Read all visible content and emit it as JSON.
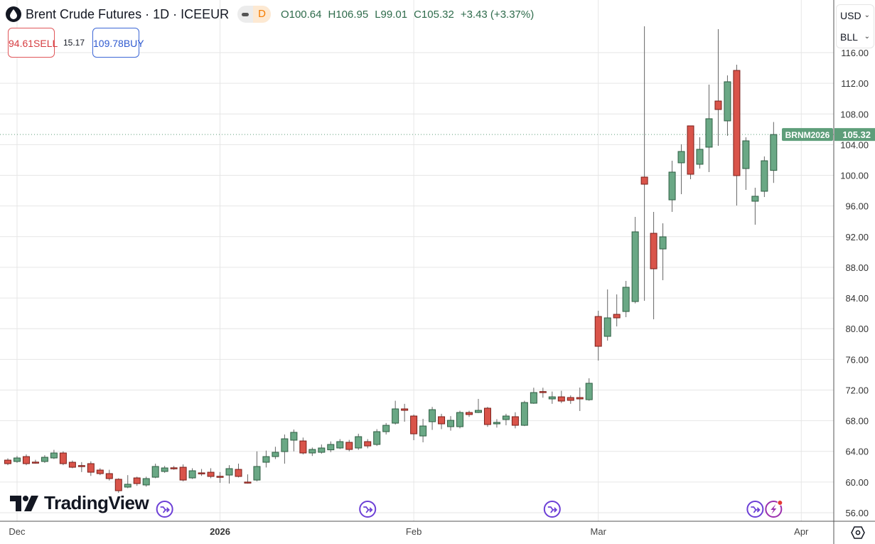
{
  "header": {
    "title": "Brent Crude Futures · 1D · ICEEUR",
    "interval_badge": "D",
    "ohlc": {
      "open": "O100.64",
      "high": "H106.95",
      "low": "L99.01",
      "close": "C105.32",
      "change": "+3.43 (+3.37%)"
    }
  },
  "trade": {
    "sell_price": "94.61",
    "sell_label": "SELL",
    "spread": "15.17",
    "buy_price": "109.78",
    "buy_label": "BUY"
  },
  "unit_selector": {
    "currency": "USD",
    "unit": "BLL"
  },
  "last_price": {
    "symbol": "BRNM2026",
    "value": "105.32"
  },
  "branding": {
    "name": "TradingView"
  },
  "colors": {
    "up": "#6aa885",
    "up_border": "#2f5e43",
    "down": "#d9544a",
    "down_border": "#7a1f1a",
    "event": "#6c3fd6",
    "last_price": "#5e9e7a"
  },
  "chart_data": {
    "type": "candlestick",
    "title": "Brent Crude Futures · 1D · ICEEUR",
    "ylim": [
      56,
      116
    ],
    "y_ticks": [
      "56.00",
      "60.00",
      "64.00",
      "68.00",
      "72.00",
      "76.00",
      "80.00",
      "84.00",
      "88.00",
      "92.00",
      "96.00",
      "100.00",
      "104.00",
      "108.00",
      "112.00",
      "116.00"
    ],
    "x_labels": [
      {
        "label": "Dec",
        "index": 1
      },
      {
        "label": "2026",
        "index": 23,
        "bold": true
      },
      {
        "label": "Feb",
        "index": 44
      },
      {
        "label": "Mar",
        "index": 64
      },
      {
        "label": "Apr",
        "index": 86
      }
    ],
    "events": [
      {
        "index": 17,
        "type": "split"
      },
      {
        "index": 39,
        "type": "split"
      },
      {
        "index": 59,
        "type": "split"
      },
      {
        "index": 81,
        "type": "split"
      },
      {
        "index": 83,
        "type": "flash"
      }
    ],
    "candles": [
      [
        62.86,
        63.1,
        62.2,
        62.4
      ],
      [
        62.68,
        63.4,
        62.5,
        63.14
      ],
      [
        63.32,
        63.6,
        62.2,
        62.4
      ],
      [
        62.6,
        62.9,
        62.4,
        62.58
      ],
      [
        62.68,
        63.5,
        62.5,
        63.23
      ],
      [
        63.14,
        64.2,
        63.0,
        63.79
      ],
      [
        63.79,
        64.0,
        62.2,
        62.4
      ],
      [
        62.58,
        62.8,
        61.8,
        61.93
      ],
      [
        62.15,
        62.6,
        61.3,
        62.12
      ],
      [
        62.4,
        62.7,
        60.8,
        61.28
      ],
      [
        61.56,
        61.8,
        60.9,
        61.1
      ],
      [
        61.1,
        61.6,
        60.2,
        60.45
      ],
      [
        60.36,
        60.5,
        58.6,
        58.87
      ],
      [
        59.34,
        60.9,
        59.2,
        59.71
      ],
      [
        60.54,
        60.7,
        59.5,
        59.8
      ],
      [
        59.62,
        60.7,
        59.4,
        60.45
      ],
      [
        60.63,
        62.4,
        60.5,
        62.03
      ],
      [
        61.38,
        62.1,
        61.2,
        61.84
      ],
      [
        61.86,
        62.1,
        61.6,
        61.84
      ],
      [
        61.93,
        62.3,
        60.1,
        60.26
      ],
      [
        60.54,
        61.8,
        60.4,
        61.47
      ],
      [
        61.2,
        61.7,
        60.8,
        61.19
      ],
      [
        61.28,
        61.8,
        60.5,
        60.73
      ],
      [
        60.75,
        61.3,
        59.9,
        60.73
      ],
      [
        60.91,
        62.2,
        59.8,
        61.75
      ],
      [
        61.65,
        62.4,
        60.6,
        60.73
      ],
      [
        60.0,
        61.0,
        59.8,
        59.99
      ],
      [
        60.26,
        64.0,
        60.1,
        62.03
      ],
      [
        62.58,
        64.1,
        61.9,
        63.32
      ],
      [
        63.32,
        64.6,
        63.0,
        63.88
      ],
      [
        63.97,
        66.2,
        62.4,
        65.64
      ],
      [
        65.46,
        66.85,
        64.0,
        66.48
      ],
      [
        65.36,
        65.8,
        63.6,
        63.79
      ],
      [
        63.79,
        64.5,
        63.4,
        64.25
      ],
      [
        63.88,
        64.9,
        63.7,
        64.44
      ],
      [
        64.2,
        65.3,
        63.9,
        64.9
      ],
      [
        64.44,
        65.6,
        64.3,
        65.27
      ],
      [
        65.18,
        65.5,
        64.0,
        64.25
      ],
      [
        64.44,
        66.3,
        64.2,
        65.92
      ],
      [
        65.27,
        65.6,
        64.4,
        64.71
      ],
      [
        64.9,
        66.9,
        64.7,
        66.57
      ],
      [
        66.57,
        67.7,
        66.2,
        67.4
      ],
      [
        67.68,
        70.6,
        67.5,
        69.54
      ],
      [
        69.54,
        70.2,
        67.87,
        69.35
      ],
      [
        68.61,
        68.8,
        65.46,
        66.29
      ],
      [
        66.01,
        68.24,
        65.18,
        67.31
      ],
      [
        67.87,
        69.8,
        66.8,
        69.44
      ],
      [
        68.52,
        68.9,
        66.9,
        67.59
      ],
      [
        67.22,
        68.6,
        66.7,
        68.05
      ],
      [
        67.22,
        69.3,
        67.0,
        69.07
      ],
      [
        69.07,
        69.3,
        68.5,
        68.8
      ],
      [
        69.07,
        70.84,
        69.0,
        69.35
      ],
      [
        69.63,
        69.8,
        67.2,
        67.5
      ],
      [
        67.59,
        68.2,
        67.1,
        67.78
      ],
      [
        68.15,
        68.9,
        67.4,
        68.61
      ],
      [
        68.52,
        69.1,
        67.0,
        67.4
      ],
      [
        67.4,
        70.6,
        67.3,
        70.37
      ],
      [
        70.28,
        72.3,
        70.2,
        71.67
      ],
      [
        71.8,
        72.3,
        71.0,
        71.76
      ],
      [
        70.84,
        71.8,
        70.2,
        71.11
      ],
      [
        71.11,
        71.9,
        70.3,
        70.56
      ],
      [
        71.02,
        71.3,
        70.2,
        70.65
      ],
      [
        71.02,
        72.32,
        69.26,
        70.84
      ],
      [
        70.74,
        73.53,
        70.6,
        72.88
      ],
      [
        81.59,
        82.34,
        75.84,
        77.7
      ],
      [
        79.0,
        85.12,
        78.44,
        81.41
      ],
      [
        81.87,
        84.47,
        80.3,
        81.41
      ],
      [
        82.24,
        86.23,
        81.5,
        85.4
      ],
      [
        83.54,
        94.58,
        83.3,
        92.63
      ],
      [
        99.77,
        119.43,
        83.63,
        98.84
      ],
      [
        92.44,
        95.23,
        81.22,
        87.81
      ],
      [
        90.4,
        93.74,
        86.32,
        91.98
      ],
      [
        96.8,
        101.9,
        95.23,
        100.42
      ],
      [
        101.63,
        104.04,
        97.54,
        103.11
      ],
      [
        106.45,
        106.45,
        99.49,
        100.14
      ],
      [
        101.44,
        104.96,
        100.88,
        103.39
      ],
      [
        103.67,
        111.83,
        100.42,
        107.38
      ],
      [
        109.69,
        119.06,
        103.85,
        108.58
      ],
      [
        107.1,
        113.03,
        105.15,
        112.2
      ],
      [
        113.68,
        114.42,
        96.06,
        99.96
      ],
      [
        100.88,
        104.96,
        98.1,
        104.5
      ],
      [
        96.62,
        98.38,
        93.56,
        97.27
      ],
      [
        97.92,
        102.46,
        97.17,
        101.9
      ],
      [
        100.64,
        106.95,
        99.01,
        105.32
      ]
    ],
    "candle_fields": [
      "open",
      "high",
      "low",
      "close"
    ],
    "last_close": 105.32
  }
}
